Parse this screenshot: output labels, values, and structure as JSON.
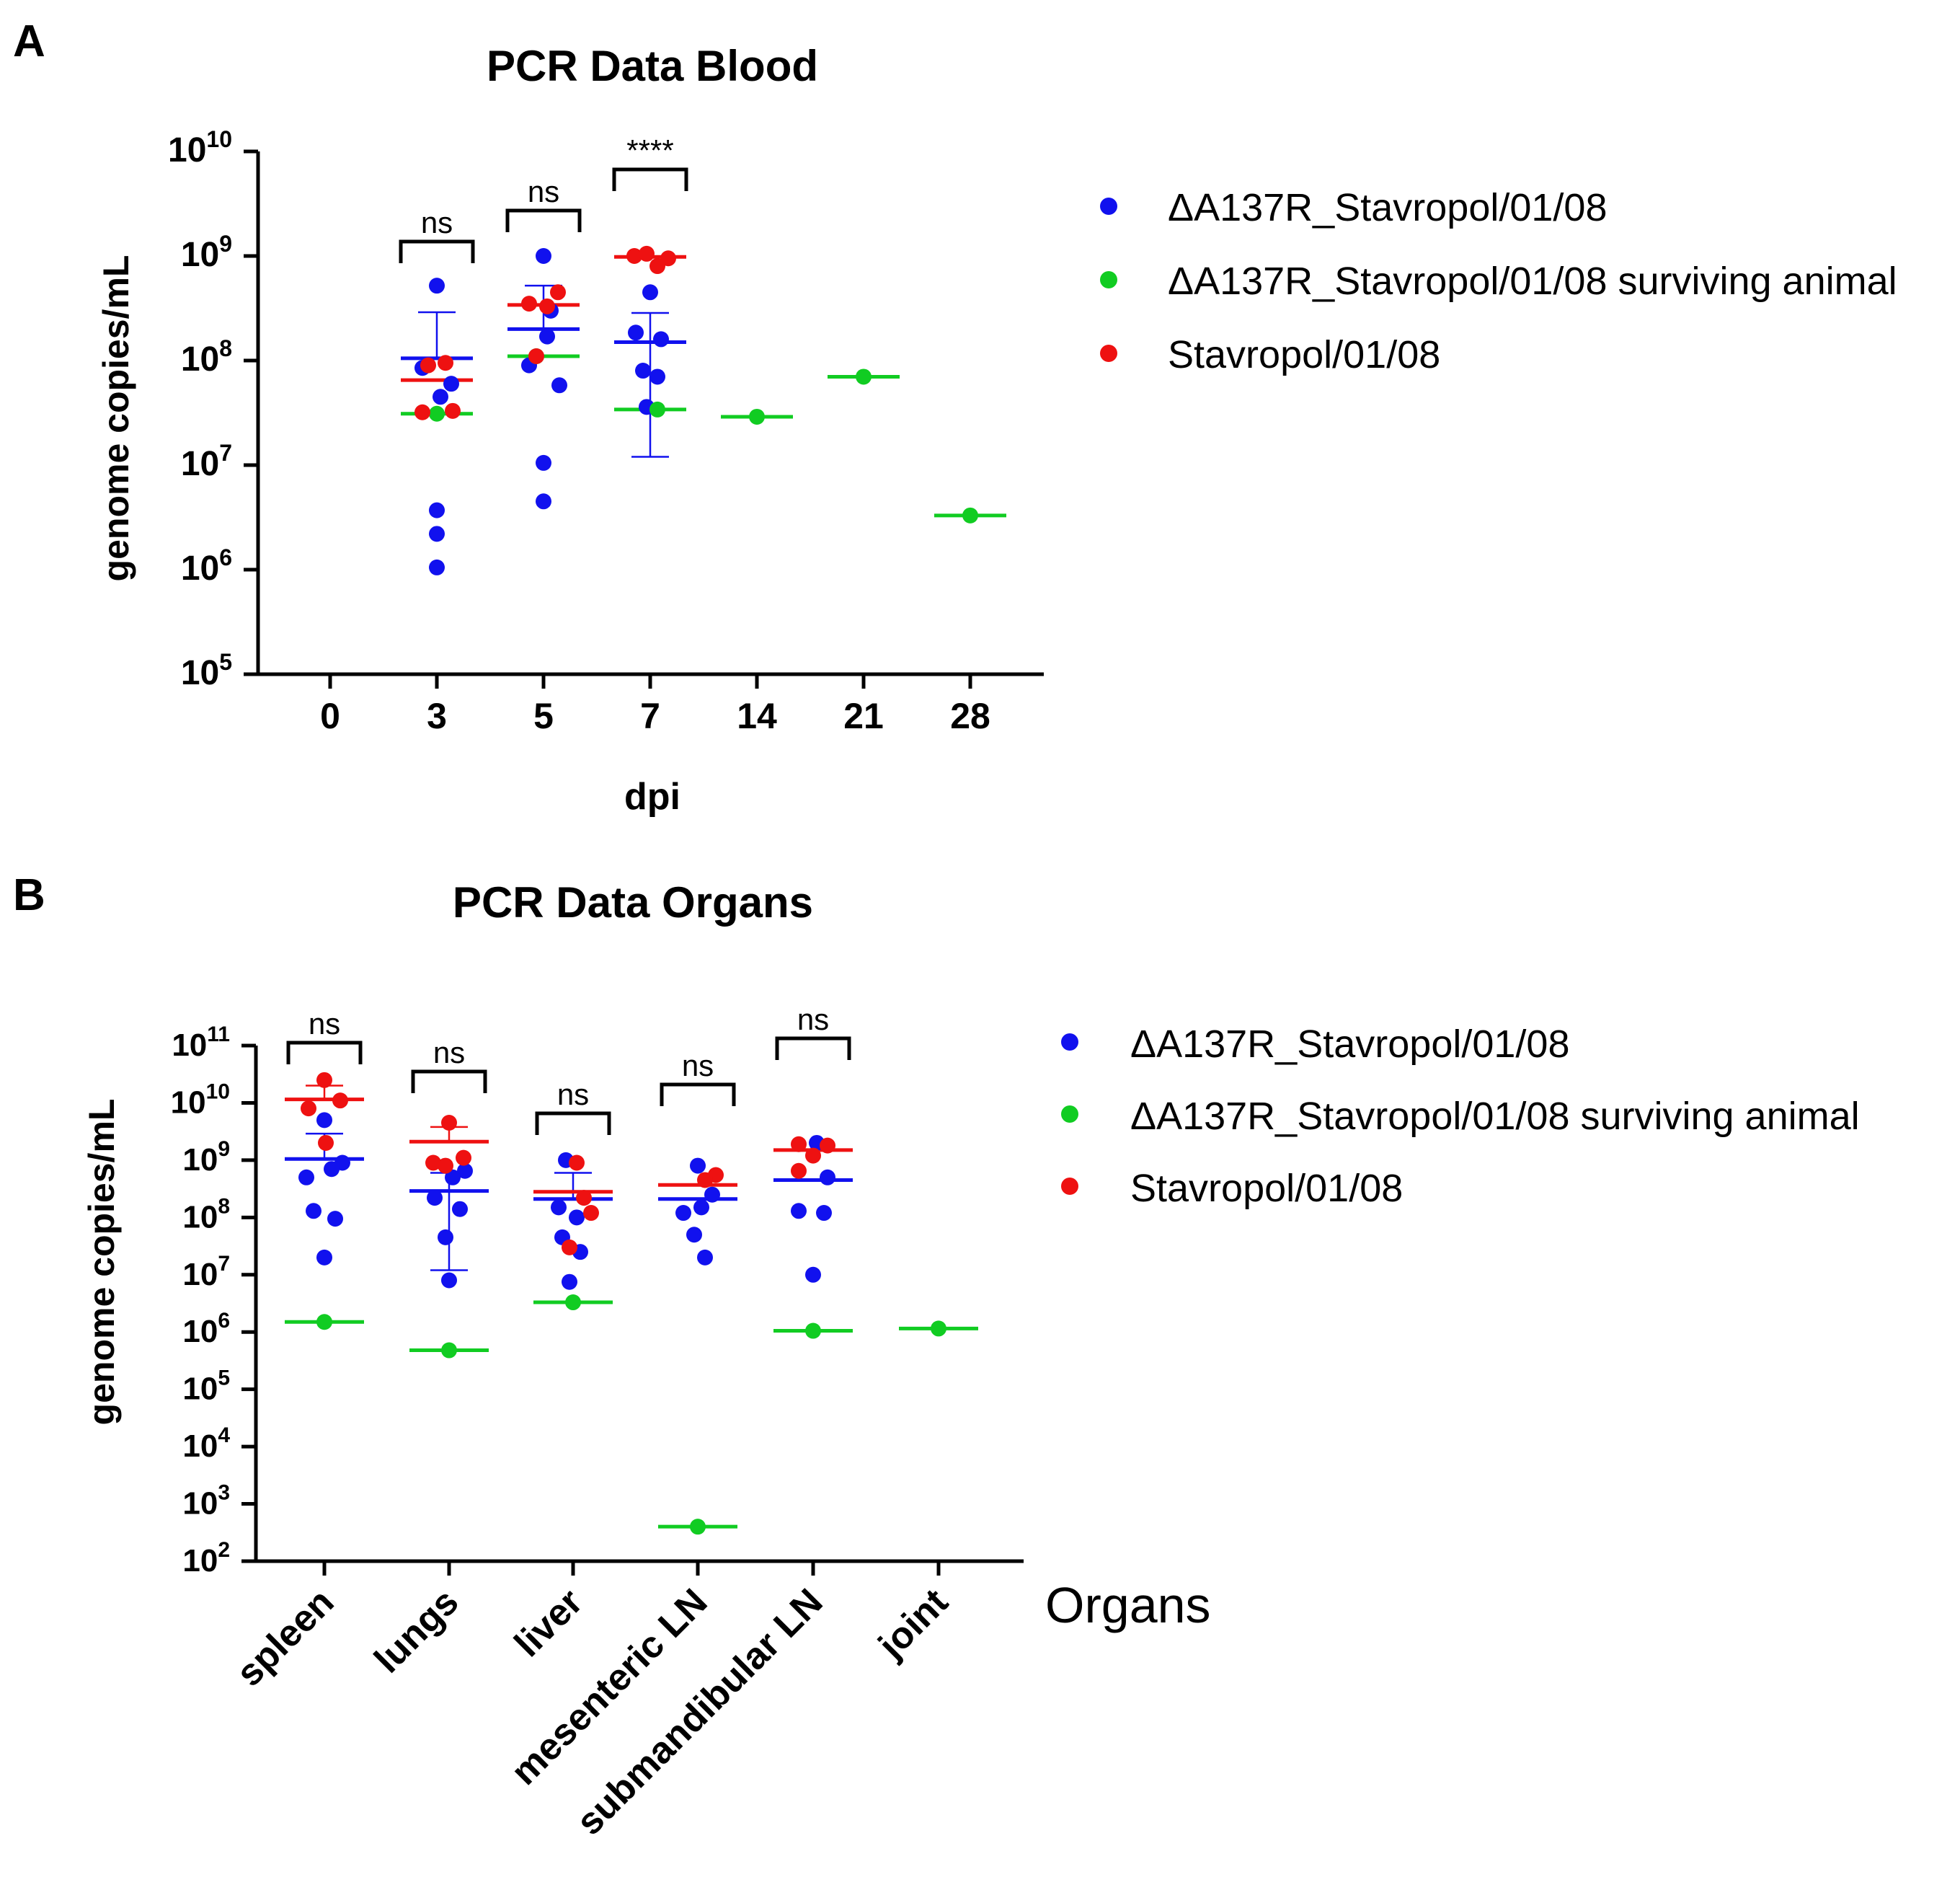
{
  "colors": {
    "blue": "#1111ee",
    "green": "#11cc22",
    "red": "#ee1111",
    "axis": "#000000"
  },
  "legend": [
    {
      "name": "ΔA137R_Stavropol/01/08",
      "color": "blue"
    },
    {
      "name": "ΔA137R_Stavropol/01/08 surviving animal",
      "color": "green"
    },
    {
      "name": "Stavropol/01/08",
      "color": "red"
    }
  ],
  "chart_data": [
    {
      "panel_label": "A",
      "type": "scatter",
      "title": "PCR Data Blood",
      "xlabel": "dpi",
      "ylabel": "genome copies/mL",
      "yscale": "log",
      "ylim_exp": [
        5,
        10
      ],
      "y_ticks": [
        {
          "base": "10",
          "exp": "5"
        },
        {
          "base": "10",
          "exp": "6"
        },
        {
          "base": "10",
          "exp": "7"
        },
        {
          "base": "10",
          "exp": "8"
        },
        {
          "base": "10",
          "exp": "9"
        },
        {
          "base": "10",
          "exp": "10"
        }
      ],
      "categories": [
        "0",
        "3",
        "5",
        "7",
        "14",
        "21",
        "28"
      ],
      "series": [
        {
          "name": "ΔA137R_Stavropol/01/08",
          "color": "blue",
          "points": [
            {
              "cat": 1,
              "dx": 0.0,
              "value": 520000000.0
            },
            {
              "cat": 1,
              "dx": -0.2,
              "value": 85000000.0
            },
            {
              "cat": 1,
              "dx": 0.2,
              "value": 60000000.0
            },
            {
              "cat": 1,
              "dx": 0.05,
              "value": 45000000.0
            },
            {
              "cat": 1,
              "dx": 0.0,
              "value": 3700000.0
            },
            {
              "cat": 1,
              "dx": 0.0,
              "value": 2200000.0
            },
            {
              "cat": 1,
              "dx": 0.0,
              "value": 1050000.0
            },
            {
              "cat": 2,
              "dx": 0.0,
              "value": 1000000000.0
            },
            {
              "cat": 2,
              "dx": 0.1,
              "value": 300000000.0
            },
            {
              "cat": 2,
              "dx": -0.2,
              "value": 90000000.0
            },
            {
              "cat": 2,
              "dx": 0.22,
              "value": 58000000.0
            },
            {
              "cat": 2,
              "dx": 0.05,
              "value": 170000000.0
            },
            {
              "cat": 2,
              "dx": 0.0,
              "value": 10500000.0
            },
            {
              "cat": 2,
              "dx": 0.0,
              "value": 4500000.0
            },
            {
              "cat": 3,
              "dx": 0.0,
              "value": 450000000.0
            },
            {
              "cat": 3,
              "dx": -0.2,
              "value": 185000000.0
            },
            {
              "cat": 3,
              "dx": 0.15,
              "value": 160000000.0
            },
            {
              "cat": 3,
              "dx": -0.1,
              "value": 80000000.0
            },
            {
              "cat": 3,
              "dx": 0.1,
              "value": 70000000.0
            },
            {
              "cat": 3,
              "dx": -0.05,
              "value": 36000000.0
            }
          ],
          "means": [
            {
              "cat": 1,
              "value": 105000000.0,
              "sd_low": null,
              "sd_high": 290000000.0
            },
            {
              "cat": 2,
              "value": 200000000.0,
              "sd_low": null,
              "sd_high": 520000000.0
            },
            {
              "cat": 3,
              "value": 150000000.0,
              "sd_low": 12000000.0,
              "sd_high": 285000000.0
            }
          ]
        },
        {
          "name": "ΔA137R_Stavropol/01/08 surviving animal",
          "color": "green",
          "points": [
            {
              "cat": 1,
              "dx": 0.0,
              "value": 31000000.0
            },
            {
              "cat": 2,
              "dx": -0.1,
              "value": 110000000.0
            },
            {
              "cat": 3,
              "dx": 0.1,
              "value": 34000000.0
            },
            {
              "cat": 4,
              "dx": 0.0,
              "value": 29000000.0
            },
            {
              "cat": 5,
              "dx": 0.0,
              "value": 70000000.0
            },
            {
              "cat": 6,
              "dx": 0.0,
              "value": 3300000.0
            }
          ],
          "means": [
            {
              "cat": 1,
              "value": 31000000.0,
              "sd_low": null,
              "sd_high": null
            },
            {
              "cat": 2,
              "value": 110000000.0,
              "sd_low": null,
              "sd_high": null
            },
            {
              "cat": 3,
              "value": 34000000.0,
              "sd_low": null,
              "sd_high": null
            },
            {
              "cat": 4,
              "value": 29000000.0,
              "sd_low": null,
              "sd_high": null
            },
            {
              "cat": 5,
              "value": 70000000.0,
              "sd_low": null,
              "sd_high": null
            },
            {
              "cat": 6,
              "value": 3300000.0,
              "sd_low": null,
              "sd_high": null
            }
          ]
        },
        {
          "name": "Stavropol/01/08",
          "color": "red",
          "points": [
            {
              "cat": 1,
              "dx": -0.2,
              "value": 32000000.0
            },
            {
              "cat": 1,
              "dx": 0.22,
              "value": 33000000.0
            },
            {
              "cat": 1,
              "dx": 0.12,
              "value": 95000000.0
            },
            {
              "cat": 1,
              "dx": -0.12,
              "value": 90000000.0
            },
            {
              "cat": 2,
              "dx": -0.2,
              "value": 350000000.0
            },
            {
              "cat": 2,
              "dx": 0.05,
              "value": 330000000.0
            },
            {
              "cat": 2,
              "dx": 0.2,
              "value": 450000000.0
            },
            {
              "cat": 2,
              "dx": -0.1,
              "value": 110000000.0
            },
            {
              "cat": 3,
              "dx": -0.22,
              "value": 1000000000.0
            },
            {
              "cat": 3,
              "dx": 0.25,
              "value": 950000000.0
            },
            {
              "cat": 3,
              "dx": 0.1,
              "value": 800000000.0
            },
            {
              "cat": 3,
              "dx": -0.05,
              "value": 1050000000.0
            }
          ],
          "means": [
            {
              "cat": 1,
              "value": 65000000.0,
              "sd_low": null,
              "sd_high": null
            },
            {
              "cat": 2,
              "value": 340000000.0,
              "sd_low": null,
              "sd_high": null
            },
            {
              "cat": 3,
              "value": 980000000.0,
              "sd_low": null,
              "sd_high": null
            }
          ]
        }
      ],
      "significance": [
        {
          "cat": 1,
          "label": "ns"
        },
        {
          "cat": 2,
          "label": "ns"
        },
        {
          "cat": 3,
          "label": "****"
        }
      ]
    },
    {
      "panel_label": "B",
      "type": "scatter",
      "title": "PCR Data Organs",
      "xlabel": "Organs",
      "ylabel": "genome copies/mL",
      "yscale": "log",
      "ylim_exp": [
        2,
        11
      ],
      "y_ticks": [
        {
          "base": "10",
          "exp": "2"
        },
        {
          "base": "10",
          "exp": "3"
        },
        {
          "base": "10",
          "exp": "4"
        },
        {
          "base": "10",
          "exp": "5"
        },
        {
          "base": "10",
          "exp": "6"
        },
        {
          "base": "10",
          "exp": "7"
        },
        {
          "base": "10",
          "exp": "8"
        },
        {
          "base": "10",
          "exp": "9"
        },
        {
          "base": "10",
          "exp": "10"
        },
        {
          "base": "10",
          "exp": "11"
        }
      ],
      "categories": [
        "spleen",
        "lungs",
        "liver",
        "mesenteric LN",
        "submandibular LN",
        "joint"
      ],
      "series": [
        {
          "name": "ΔA137R_Stavropol/01/08",
          "color": "blue",
          "points": [
            {
              "cat": 0,
              "dx": 0.0,
              "value": 5000000000.0
            },
            {
              "cat": 0,
              "dx": -0.25,
              "value": 500000000.0
            },
            {
              "cat": 0,
              "dx": 0.25,
              "value": 900000000.0
            },
            {
              "cat": 0,
              "dx": 0.1,
              "value": 700000000.0
            },
            {
              "cat": 0,
              "dx": -0.15,
              "value": 130000000.0
            },
            {
              "cat": 0,
              "dx": 0.15,
              "value": 95000000.0
            },
            {
              "cat": 0,
              "dx": 0.0,
              "value": 20000000.0
            },
            {
              "cat": 1,
              "dx": 0.22,
              "value": 650000000.0
            },
            {
              "cat": 1,
              "dx": 0.05,
              "value": 500000000.0
            },
            {
              "cat": 1,
              "dx": -0.2,
              "value": 220000000.0
            },
            {
              "cat": 1,
              "dx": 0.15,
              "value": 140000000.0
            },
            {
              "cat": 1,
              "dx": -0.05,
              "value": 45000000.0
            },
            {
              "cat": 1,
              "dx": 0.0,
              "value": 8000000.0
            },
            {
              "cat": 2,
              "dx": -0.1,
              "value": 1000000000.0
            },
            {
              "cat": 2,
              "dx": -0.2,
              "value": 150000000.0
            },
            {
              "cat": 2,
              "dx": 0.05,
              "value": 100000000.0
            },
            {
              "cat": 2,
              "dx": -0.15,
              "value": 45000000.0
            },
            {
              "cat": 2,
              "dx": 0.1,
              "value": 25000000.0
            },
            {
              "cat": 2,
              "dx": -0.05,
              "value": 7500000.0
            },
            {
              "cat": 3,
              "dx": 0.0,
              "value": 800000000.0
            },
            {
              "cat": 3,
              "dx": 0.2,
              "value": 250000000.0
            },
            {
              "cat": 3,
              "dx": -0.2,
              "value": 120000000.0
            },
            {
              "cat": 3,
              "dx": 0.05,
              "value": 150000000.0
            },
            {
              "cat": 3,
              "dx": -0.05,
              "value": 50000000.0
            },
            {
              "cat": 3,
              "dx": 0.1,
              "value": 20000000.0
            },
            {
              "cat": 4,
              "dx": 0.05,
              "value": 2000000000.0
            },
            {
              "cat": 4,
              "dx": 0.2,
              "value": 500000000.0
            },
            {
              "cat": 4,
              "dx": -0.2,
              "value": 130000000.0
            },
            {
              "cat": 4,
              "dx": 0.15,
              "value": 120000000.0
            },
            {
              "cat": 4,
              "dx": 0.0,
              "value": 10000000.0
            }
          ],
          "means": [
            {
              "cat": 0,
              "value": 1050000000.0,
              "sd_low": null,
              "sd_high": 2900000000.0
            },
            {
              "cat": 1,
              "value": 290000000.0,
              "sd_low": 12000000.0,
              "sd_high": 600000000.0
            },
            {
              "cat": 2,
              "value": 210000000.0,
              "sd_low": null,
              "sd_high": 600000000.0
            },
            {
              "cat": 3,
              "value": 210000000.0,
              "sd_low": null,
              "sd_high": null
            },
            {
              "cat": 4,
              "value": 450000000.0,
              "sd_low": null,
              "sd_high": null
            }
          ]
        },
        {
          "name": "ΔA137R_Stavropol/01/08 surviving animal",
          "color": "green",
          "points": [
            {
              "cat": 0,
              "dx": 0.0,
              "value": 1500000.0
            },
            {
              "cat": 1,
              "dx": 0.0,
              "value": 480000.0
            },
            {
              "cat": 2,
              "dx": 0.0,
              "value": 3300000.0
            },
            {
              "cat": 3,
              "dx": 0.0,
              "value": 400.0
            },
            {
              "cat": 4,
              "dx": 0.0,
              "value": 1050000.0
            },
            {
              "cat": 5,
              "dx": 0.0,
              "value": 1150000.0
            }
          ],
          "means": [
            {
              "cat": 0,
              "value": 1500000.0,
              "sd_low": null,
              "sd_high": null
            },
            {
              "cat": 1,
              "value": 480000.0,
              "sd_low": null,
              "sd_high": null
            },
            {
              "cat": 2,
              "value": 3300000.0,
              "sd_low": null,
              "sd_high": null
            },
            {
              "cat": 3,
              "value": 400.0,
              "sd_low": null,
              "sd_high": null
            },
            {
              "cat": 4,
              "value": 1050000.0,
              "sd_low": null,
              "sd_high": null
            },
            {
              "cat": 5,
              "value": 1150000.0,
              "sd_low": null,
              "sd_high": null
            }
          ]
        },
        {
          "name": "Stavropol/01/08",
          "color": "red",
          "points": [
            {
              "cat": 0,
              "dx": 0.0,
              "value": 25000000000.0
            },
            {
              "cat": 0,
              "dx": -0.22,
              "value": 8000000000.0
            },
            {
              "cat": 0,
              "dx": 0.22,
              "value": 11000000000.0
            },
            {
              "cat": 0,
              "dx": 0.02,
              "value": 2000000000.0
            },
            {
              "cat": 1,
              "dx": 0.0,
              "value": 4500000000.0
            },
            {
              "cat": 1,
              "dx": -0.22,
              "value": 900000000.0
            },
            {
              "cat": 1,
              "dx": 0.2,
              "value": 1100000000.0
            },
            {
              "cat": 1,
              "dx": -0.05,
              "value": 800000000.0
            },
            {
              "cat": 2,
              "dx": 0.05,
              "value": 900000000.0
            },
            {
              "cat": 2,
              "dx": 0.25,
              "value": 120000000.0
            },
            {
              "cat": 2,
              "dx": 0.15,
              "value": 220000000.0
            },
            {
              "cat": 2,
              "dx": -0.05,
              "value": 30000000.0
            },
            {
              "cat": 3,
              "dx": 0.25,
              "value": 550000000.0
            },
            {
              "cat": 3,
              "dx": 0.1,
              "value": 450000000.0
            },
            {
              "cat": 4,
              "dx": -0.2,
              "value": 1900000000.0
            },
            {
              "cat": 4,
              "dx": 0.0,
              "value": 1200000000.0
            },
            {
              "cat": 4,
              "dx": -0.2,
              "value": 650000000.0
            },
            {
              "cat": 4,
              "dx": 0.2,
              "value": 1800000000.0
            }
          ],
          "means": [
            {
              "cat": 0,
              "value": 11500000000.0,
              "sd_low": null,
              "sd_high": 20000000000.0
            },
            {
              "cat": 1,
              "value": 2100000000.0,
              "sd_low": null,
              "sd_high": 3800000000.0
            },
            {
              "cat": 2,
              "value": 280000000.0,
              "sd_low": null,
              "sd_high": null
            },
            {
              "cat": 3,
              "value": 370000000.0,
              "sd_low": null,
              "sd_high": null
            },
            {
              "cat": 4,
              "value": 1500000000.0,
              "sd_low": null,
              "sd_high": null
            }
          ]
        }
      ],
      "significance": [
        {
          "cat": 0,
          "label": "ns"
        },
        {
          "cat": 1,
          "label": "ns"
        },
        {
          "cat": 2,
          "label": "ns"
        },
        {
          "cat": 3,
          "label": "ns"
        },
        {
          "cat": 4,
          "label": "ns"
        }
      ]
    }
  ]
}
